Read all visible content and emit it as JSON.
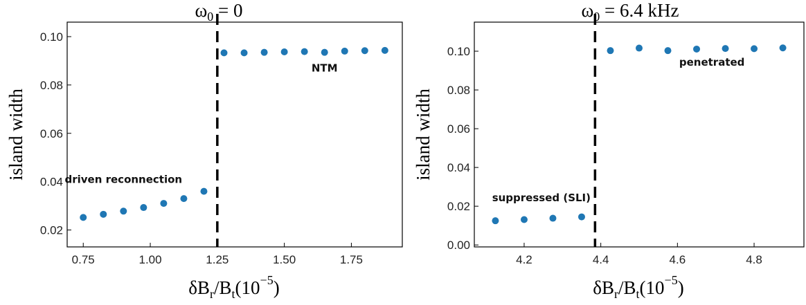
{
  "chart_data": [
    {
      "type": "scatter",
      "title_symbol": "ω",
      "title_subscript": "0",
      "title_rest": " = 0",
      "ylabel": "island width",
      "xlabel_parts": {
        "pre": "δB",
        "sub1": "r",
        "mid": "/B",
        "sub2": "t",
        "paren_open": "(10",
        "sup": "−5",
        "paren_close": ")"
      },
      "xlim": [
        0.69,
        1.94
      ],
      "ylim": [
        0.013,
        0.106
      ],
      "xticks": [
        0.75,
        1.0,
        1.25,
        1.5,
        1.75
      ],
      "xtick_labels": [
        "0.75",
        "1.00",
        "1.25",
        "1.50",
        "1.75"
      ],
      "yticks": [
        0.02,
        0.04,
        0.06,
        0.08,
        0.1
      ],
      "ytick_labels": [
        "0.02",
        "0.04",
        "0.06",
        "0.08",
        "0.10"
      ],
      "grid": false,
      "marker_color": "#1f77b4",
      "points": [
        {
          "x": 0.75,
          "y": 0.0252
        },
        {
          "x": 0.825,
          "y": 0.0265
        },
        {
          "x": 0.9,
          "y": 0.0278
        },
        {
          "x": 0.975,
          "y": 0.0293
        },
        {
          "x": 1.05,
          "y": 0.031
        },
        {
          "x": 1.125,
          "y": 0.033
        },
        {
          "x": 1.2,
          "y": 0.036
        },
        {
          "x": 1.275,
          "y": 0.0933
        },
        {
          "x": 1.35,
          "y": 0.0933
        },
        {
          "x": 1.425,
          "y": 0.0935
        },
        {
          "x": 1.5,
          "y": 0.0937
        },
        {
          "x": 1.575,
          "y": 0.0938
        },
        {
          "x": 1.65,
          "y": 0.0935
        },
        {
          "x": 1.725,
          "y": 0.094
        },
        {
          "x": 1.8,
          "y": 0.0942
        },
        {
          "x": 1.875,
          "y": 0.0943
        }
      ],
      "vline_x": 1.25,
      "annotations": [
        {
          "text": "driven reconnection",
          "x": 0.9,
          "y": 0.0395
        },
        {
          "text": "NTM",
          "x": 1.65,
          "y": 0.0855
        }
      ]
    },
    {
      "type": "scatter",
      "title_symbol": "ω",
      "title_subscript": "0",
      "title_rest": " = 6.4 kHz",
      "ylabel": "island width",
      "xlabel_parts": {
        "pre": "δB",
        "sub1": "r",
        "mid": "/B",
        "sub2": "t",
        "paren_open": "(10",
        "sup": "−5",
        "paren_close": ")"
      },
      "xlim": [
        4.07,
        4.93
      ],
      "ylim": [
        -0.001,
        0.115
      ],
      "xticks": [
        4.2,
        4.4,
        4.6,
        4.8
      ],
      "xtick_labels": [
        "4.2",
        "4.4",
        "4.6",
        "4.8"
      ],
      "yticks": [
        0.0,
        0.02,
        0.04,
        0.06,
        0.08,
        0.1
      ],
      "ytick_labels": [
        "0.00",
        "0.02",
        "0.04",
        "0.06",
        "0.08",
        "0.10"
      ],
      "grid": false,
      "marker_color": "#1f77b4",
      "points": [
        {
          "x": 4.125,
          "y": 0.0125
        },
        {
          "x": 4.2,
          "y": 0.0131
        },
        {
          "x": 4.275,
          "y": 0.0138
        },
        {
          "x": 4.35,
          "y": 0.0145
        },
        {
          "x": 4.425,
          "y": 0.1003
        },
        {
          "x": 4.5,
          "y": 0.1016
        },
        {
          "x": 4.575,
          "y": 0.1003
        },
        {
          "x": 4.65,
          "y": 0.1011
        },
        {
          "x": 4.725,
          "y": 0.1014
        },
        {
          "x": 4.8,
          "y": 0.1013
        },
        {
          "x": 4.875,
          "y": 0.1017
        }
      ],
      "vline_x": 4.385,
      "annotations": [
        {
          "text": "suppressed (SLI)",
          "x": 4.245,
          "y": 0.0225
        },
        {
          "text": "penetrated",
          "x": 4.69,
          "y": 0.0925
        }
      ]
    }
  ]
}
